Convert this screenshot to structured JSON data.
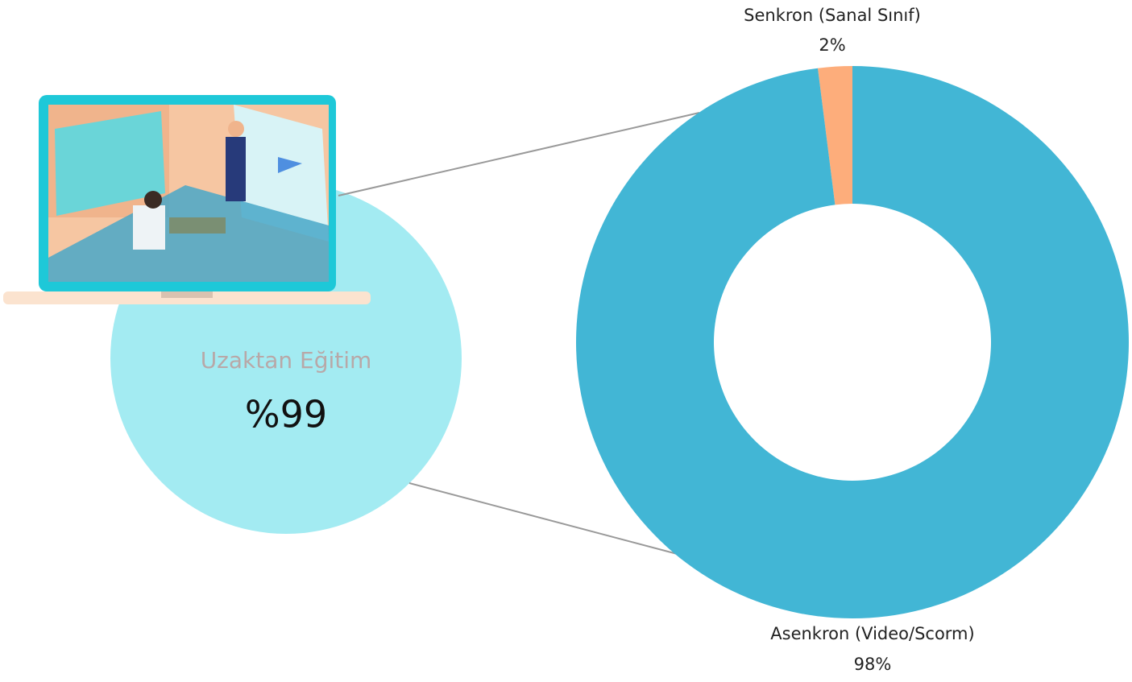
{
  "chart_data": {
    "type": "donut",
    "categories": [
      "Senkron (Sanal Sınıf)",
      "Asenkron (Video/Scorm)"
    ],
    "values": [
      2,
      98
    ],
    "value_labels": [
      "2%",
      "98%"
    ],
    "colors": [
      "#fdad7b",
      "#42b6d5"
    ],
    "annotations": [
      "Uzaktan Eğitim",
      "%99"
    ]
  }
}
